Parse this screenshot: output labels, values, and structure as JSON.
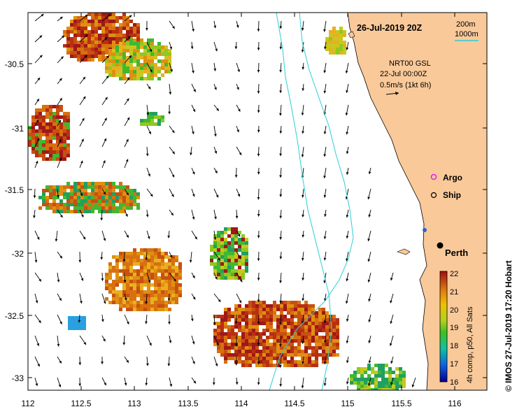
{
  "title": "26-Jul-2019 20Z",
  "depth_legend": {
    "contour_a": "200m",
    "contour_b": "1000m",
    "contour_color": "#2ad0d8"
  },
  "current_info": {
    "line1": "NRT00 GSL",
    "line2": "22-Jul 00:00Z",
    "line3": "0.5m/s (1kt 6h)"
  },
  "legend": {
    "argo_label": "Argo",
    "ship_label": "Ship",
    "argo_color": "#e020e0"
  },
  "place": {
    "name": "Perth",
    "lon": 115.86,
    "lat": -31.95
  },
  "credit": "© IMOS 27-Jul-2019 17:20 Hobart",
  "colorbar": {
    "label": "4h comp, p50, All Sats",
    "ticks": [
      "22",
      "21",
      "20",
      "19",
      "18",
      "17",
      "16"
    ],
    "min": 16,
    "max": 22
  },
  "axes": {
    "x_ticks": [
      "112",
      "112.5",
      "113",
      "113.5",
      "114",
      "114.5",
      "115",
      "115.5",
      "116"
    ],
    "y_ticks": [
      "-30.5",
      "-31",
      "-31.5",
      "-32",
      "-32.5",
      "-33"
    ],
    "x_range": [
      112,
      116.3
    ],
    "y_range": [
      -33.1,
      -30.05
    ]
  },
  "colors": {
    "land": "#f9c99a",
    "water": "#ffffff"
  }
}
